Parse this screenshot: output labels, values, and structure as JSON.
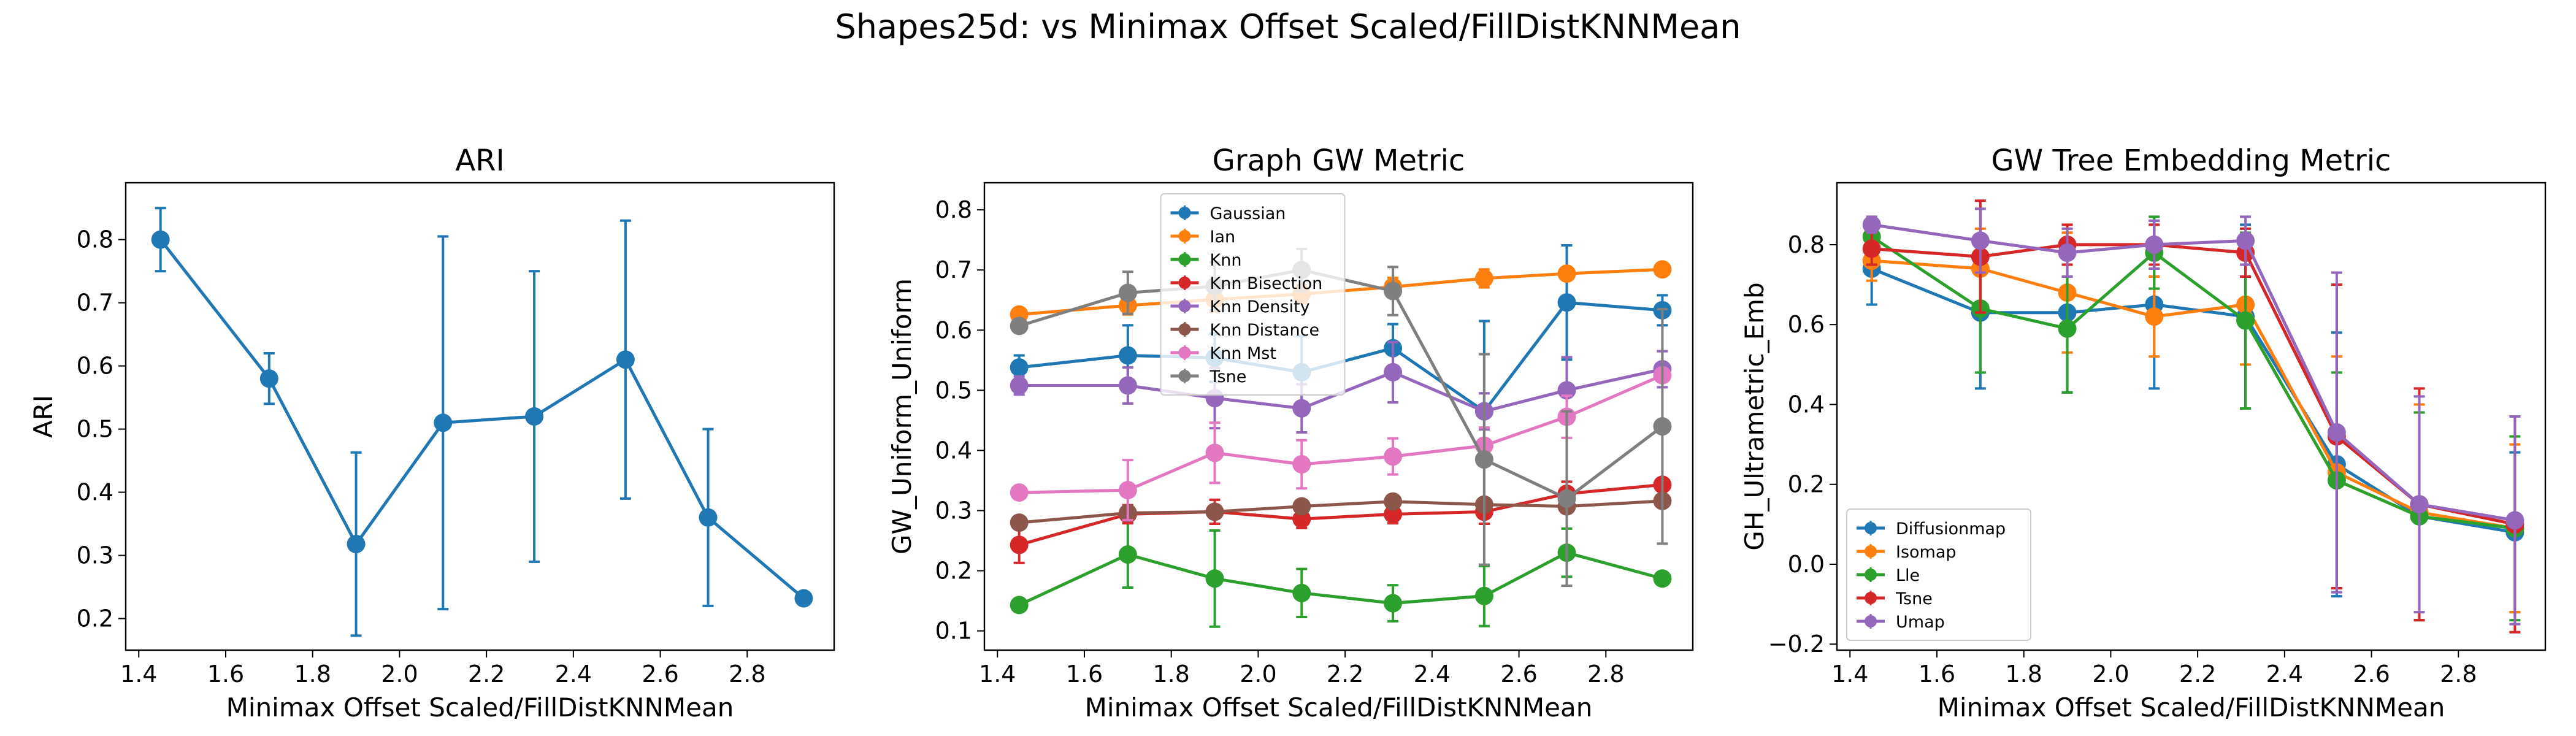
{
  "figure": {
    "suptitle": "Shapes25d: vs Minimax Offset Scaled/FillDistKNNMean"
  },
  "chart_data": [
    {
      "type": "line",
      "title": "ARI",
      "xlabel": "Minimax Offset Scaled/FillDistKNNMean",
      "ylabel": "ARI",
      "xlim": [
        1.37,
        3.0
      ],
      "ylim": [
        0.15,
        0.89
      ],
      "xticks": [
        1.4,
        1.6,
        1.8,
        2.0,
        2.2,
        2.4,
        2.6,
        2.8
      ],
      "yticks": [
        0.2,
        0.3,
        0.4,
        0.5,
        0.6,
        0.7,
        0.8
      ],
      "tick_decimals": 1,
      "legend": null,
      "series": [
        {
          "color": "#1f77b4",
          "x": [
            1.45,
            1.7,
            1.9,
            2.1,
            2.31,
            2.52,
            2.71,
            2.93
          ],
          "y": [
            0.8,
            0.58,
            0.318,
            0.51,
            0.52,
            0.61,
            0.36,
            0.232
          ],
          "err": [
            0.05,
            0.04,
            0.145,
            0.295,
            0.23,
            0.22,
            0.14,
            0.0
          ]
        }
      ]
    },
    {
      "type": "line",
      "title": "Graph GW Metric",
      "xlabel": "Minimax Offset Scaled/FillDistKNNMean",
      "ylabel": "GW_Uniform_Uniform",
      "xlim": [
        1.37,
        3.0
      ],
      "ylim": [
        0.068,
        0.845
      ],
      "xticks": [
        1.4,
        1.6,
        1.8,
        2.0,
        2.2,
        2.4,
        2.6,
        2.8
      ],
      "yticks": [
        0.1,
        0.2,
        0.3,
        0.4,
        0.5,
        0.6,
        0.7,
        0.8
      ],
      "tick_decimals": 1,
      "legend": "upper-center",
      "series": [
        {
          "name": "Gaussian",
          "color": "#1f77b4",
          "x": [
            1.45,
            1.7,
            1.9,
            2.1,
            2.31,
            2.52,
            2.71,
            2.93
          ],
          "y": [
            0.538,
            0.558,
            0.554,
            0.53,
            0.57,
            0.465,
            0.646,
            0.633
          ],
          "err": [
            0.02,
            0.05,
            0.04,
            0.06,
            0.04,
            0.15,
            0.095,
            0.025
          ]
        },
        {
          "name": "Ian",
          "color": "#ff7f0e",
          "x": [
            1.45,
            1.7,
            1.9,
            2.1,
            2.31,
            2.52,
            2.71,
            2.93
          ],
          "y": [
            0.626,
            0.641,
            0.651,
            0.66,
            0.672,
            0.686,
            0.694,
            0.701
          ],
          "err": [
            0.01,
            0.015,
            0.02,
            0.015,
            0.015,
            0.015,
            0.01,
            0.005
          ]
        },
        {
          "name": "Knn",
          "color": "#2ca02c",
          "x": [
            1.45,
            1.7,
            1.9,
            2.1,
            2.31,
            2.52,
            2.71,
            2.93
          ],
          "y": [
            0.143,
            0.227,
            0.187,
            0.163,
            0.146,
            0.158,
            0.23,
            0.187
          ],
          "err": [
            0.005,
            0.055,
            0.08,
            0.04,
            0.03,
            0.05,
            0.04,
            0.01
          ]
        },
        {
          "name": "Knn Bisection",
          "color": "#d62728",
          "x": [
            1.45,
            1.7,
            1.9,
            2.1,
            2.31,
            2.52,
            2.71,
            2.93
          ],
          "y": [
            0.243,
            0.294,
            0.298,
            0.286,
            0.294,
            0.298,
            0.328,
            0.343
          ],
          "err": [
            0.03,
            0.015,
            0.02,
            0.015,
            0.015,
            0.02,
            0.02,
            0.01
          ]
        },
        {
          "name": "Knn Density",
          "color": "#9467bd",
          "x": [
            1.45,
            1.7,
            1.9,
            2.1,
            2.31,
            2.52,
            2.71,
            2.93
          ],
          "y": [
            0.508,
            0.508,
            0.487,
            0.47,
            0.53,
            0.465,
            0.5,
            0.535
          ],
          "err": [
            0.015,
            0.03,
            0.05,
            0.04,
            0.05,
            0.03,
            0.055,
            0.03
          ]
        },
        {
          "name": "Knn Distance",
          "color": "#8c564b",
          "x": [
            1.45,
            1.7,
            1.9,
            2.1,
            2.31,
            2.52,
            2.71,
            2.93
          ],
          "y": [
            0.28,
            0.296,
            0.298,
            0.307,
            0.315,
            0.31,
            0.307,
            0.316
          ],
          "err": [
            0.005,
            0.01,
            0.01,
            0.01,
            0.01,
            0.01,
            0.01,
            0.01
          ]
        },
        {
          "name": "Knn Mst",
          "color": "#e377c2",
          "x": [
            1.45,
            1.7,
            1.9,
            2.1,
            2.31,
            2.52,
            2.71,
            2.93
          ],
          "y": [
            0.33,
            0.334,
            0.396,
            0.377,
            0.39,
            0.408,
            0.456,
            0.525
          ],
          "err": [
            0.005,
            0.05,
            0.05,
            0.04,
            0.03,
            0.03,
            0.035,
            0.01
          ]
        },
        {
          "name": "Tsne",
          "color": "#7f7f7f",
          "x": [
            1.45,
            1.7,
            1.9,
            2.1,
            2.31,
            2.52,
            2.71,
            2.93
          ],
          "y": [
            0.607,
            0.662,
            0.673,
            0.7,
            0.665,
            0.385,
            0.32,
            0.44
          ],
          "err": [
            0.01,
            0.035,
            0.04,
            0.035,
            0.04,
            0.175,
            0.145,
            0.195
          ]
        }
      ]
    },
    {
      "type": "line",
      "title": "GW Tree Embedding Metric",
      "xlabel": "Minimax Offset Scaled/FillDistKNNMean",
      "ylabel": "GH_Ultrametric_Emb",
      "xlim": [
        1.37,
        3.0
      ],
      "ylim": [
        -0.215,
        0.955
      ],
      "xticks": [
        1.4,
        1.6,
        1.8,
        2.0,
        2.2,
        2.4,
        2.6,
        2.8
      ],
      "yticks": [
        -0.2,
        0.0,
        0.2,
        0.4,
        0.6,
        0.8
      ],
      "tick_decimals": 1,
      "legend": "lower-left",
      "series": [
        {
          "name": "Diffusionmap",
          "color": "#1f77b4",
          "x": [
            1.45,
            1.7,
            1.9,
            2.1,
            2.31,
            2.52,
            2.71,
            2.93
          ],
          "y": [
            0.74,
            0.63,
            0.63,
            0.65,
            0.62,
            0.25,
            0.12,
            0.08
          ],
          "err": [
            0.09,
            0.19,
            0.2,
            0.21,
            0.23,
            0.33,
            0.26,
            0.2
          ]
        },
        {
          "name": "Isomap",
          "color": "#ff7f0e",
          "x": [
            1.45,
            1.7,
            1.9,
            2.1,
            2.31,
            2.52,
            2.71,
            2.93
          ],
          "y": [
            0.76,
            0.74,
            0.68,
            0.62,
            0.65,
            0.23,
            0.13,
            0.09
          ],
          "err": [
            0.05,
            0.1,
            0.15,
            0.1,
            0.15,
            0.29,
            0.27,
            0.21
          ]
        },
        {
          "name": "Lle",
          "color": "#2ca02c",
          "x": [
            1.45,
            1.7,
            1.9,
            2.1,
            2.31,
            2.52,
            2.71,
            2.93
          ],
          "y": [
            0.82,
            0.64,
            0.59,
            0.78,
            0.61,
            0.21,
            0.12,
            0.09
          ],
          "err": [
            0.04,
            0.16,
            0.16,
            0.09,
            0.22,
            0.27,
            0.26,
            0.23
          ]
        },
        {
          "name": "Tsne",
          "color": "#d62728",
          "x": [
            1.45,
            1.7,
            1.9,
            2.1,
            2.31,
            2.52,
            2.71,
            2.93
          ],
          "y": [
            0.79,
            0.77,
            0.8,
            0.8,
            0.78,
            0.32,
            0.15,
            0.1
          ],
          "err": [
            0.04,
            0.14,
            0.05,
            0.05,
            0.06,
            0.38,
            0.29,
            0.27
          ]
        },
        {
          "name": "Umap",
          "color": "#9467bd",
          "x": [
            1.45,
            1.7,
            1.9,
            2.1,
            2.31,
            2.52,
            2.71,
            2.93
          ],
          "y": [
            0.85,
            0.81,
            0.78,
            0.8,
            0.81,
            0.33,
            0.15,
            0.11
          ],
          "err": [
            0.02,
            0.08,
            0.06,
            0.06,
            0.06,
            0.4,
            0.27,
            0.26
          ]
        }
      ]
    }
  ]
}
